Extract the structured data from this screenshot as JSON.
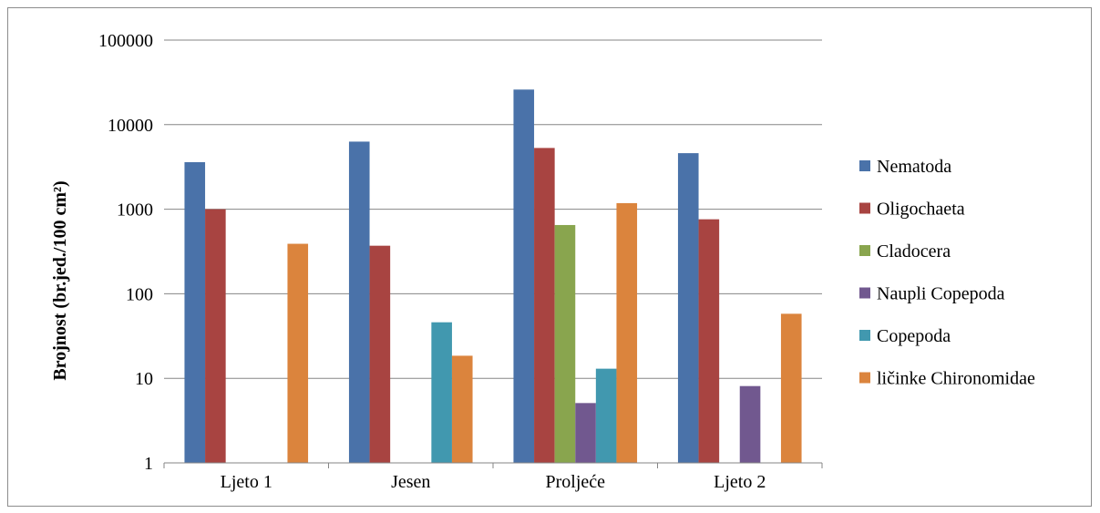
{
  "chart_data": {
    "type": "bar",
    "categories": [
      "Ljeto 1",
      "Jesen",
      "Proljeće",
      "Ljeto 2"
    ],
    "ylabel": "Brojnost (br.jed./100 cm²)",
    "xlabel": "",
    "yscale": "log",
    "ylim": [
      1,
      100000
    ],
    "yticks": [
      1,
      10,
      100,
      1000,
      10000,
      100000
    ],
    "ytick_labels": [
      "1",
      "10",
      "100",
      "1000",
      "10000",
      "100000"
    ],
    "grid": true,
    "legend_position": "right",
    "series": [
      {
        "name": "Nematoda",
        "color": "#4a72a9",
        "values": [
          3600,
          6300,
          26000,
          4600
        ]
      },
      {
        "name": "Oligochaeta",
        "color": "#a84441",
        "values": [
          1000,
          370,
          5300,
          760
        ]
      },
      {
        "name": "Cladocera",
        "color": "#89a54e",
        "values": [
          null,
          null,
          650,
          null
        ]
      },
      {
        "name": "Naupli Copepoda",
        "color": "#71588f",
        "values": [
          null,
          null,
          5.1,
          8.1
        ]
      },
      {
        "name": "Copepoda",
        "color": "#4198af",
        "values": [
          null,
          46,
          13,
          null
        ]
      },
      {
        "name": "ličinke Chironomidae",
        "color": "#db843d",
        "values": [
          390,
          18.5,
          1180,
          58
        ]
      }
    ]
  }
}
